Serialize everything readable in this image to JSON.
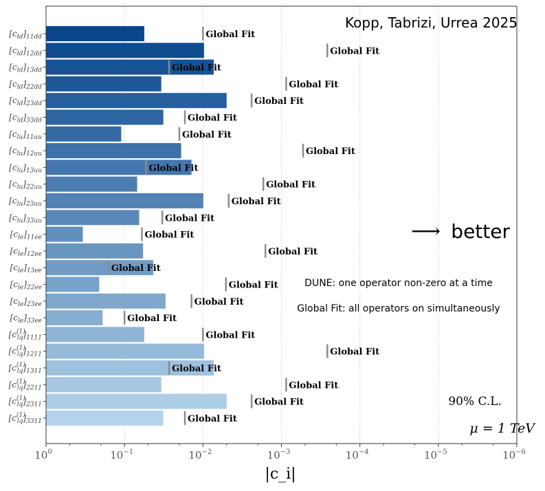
{
  "chart_data": {
    "type": "bar",
    "orientation": "horizontal",
    "x_scale": "log",
    "x_reversed": true,
    "xlim": [
      1,
      1e-06
    ],
    "xlabel": "|c_i|",
    "title": "Kopp, Tabrizi, Urrea 2025",
    "x_ticks": [
      {
        "value": 1,
        "base": "10",
        "exp": "0"
      },
      {
        "value": 0.1,
        "base": "10",
        "exp": "−1"
      },
      {
        "value": 0.01,
        "base": "10",
        "exp": "−2"
      },
      {
        "value": 0.001,
        "base": "10",
        "exp": "−3"
      },
      {
        "value": 0.0001,
        "base": "10",
        "exp": "−4"
      },
      {
        "value": 1e-05,
        "base": "10",
        "exp": "−5"
      },
      {
        "value": 1e-06,
        "base": "10",
        "exp": "−6"
      }
    ],
    "global_fit_label": "Global Fit",
    "annotations": {
      "better": "better",
      "better_arrow": "⟶",
      "dune_note": "DUNE: one operator non-zero at a time",
      "global_note": "Global Fit: all operators on simultaneously",
      "cl": "90% C.L.",
      "mu": "μ = 1 TeV"
    },
    "operators": [
      {
        "sym": "c",
        "sub": "ld",
        "sup": "",
        "idx": "11dd",
        "dune": 0.056,
        "global": 0.01
      },
      {
        "sym": "c",
        "sub": "ld",
        "sup": "",
        "idx": "12dd",
        "dune": 0.0097,
        "global": 0.00026
      },
      {
        "sym": "c",
        "sub": "ld",
        "sup": "",
        "idx": "13dd",
        "dune": 0.0073,
        "global": 0.027
      },
      {
        "sym": "c",
        "sub": "ld",
        "sup": "",
        "idx": "22dd",
        "dune": 0.034,
        "global": 0.00087
      },
      {
        "sym": "c",
        "sub": "ld",
        "sup": "",
        "idx": "23dd",
        "dune": 0.005,
        "global": 0.0024
      },
      {
        "sym": "c",
        "sub": "ld",
        "sup": "",
        "idx": "33dd",
        "dune": 0.032,
        "global": 0.017
      },
      {
        "sym": "c",
        "sub": "lu",
        "sup": "",
        "idx": "11uu",
        "dune": 0.11,
        "global": 0.02
      },
      {
        "sym": "c",
        "sub": "lu",
        "sup": "",
        "idx": "12uu",
        "dune": 0.019,
        "global": 0.00053
      },
      {
        "sym": "c",
        "sub": "lu",
        "sup": "",
        "idx": "13uu",
        "dune": 0.014,
        "global": 0.053
      },
      {
        "sym": "c",
        "sub": "lu",
        "sup": "",
        "idx": "22uu",
        "dune": 0.069,
        "global": 0.0017
      },
      {
        "sym": "c",
        "sub": "lu",
        "sup": "",
        "idx": "23uu",
        "dune": 0.0099,
        "global": 0.0047
      },
      {
        "sym": "c",
        "sub": "lu",
        "sup": "",
        "idx": "33uu",
        "dune": 0.065,
        "global": 0.033
      },
      {
        "sym": "c",
        "sub": "le",
        "sup": "",
        "idx": "11ee",
        "dune": 0.34,
        "global": 0.06
      },
      {
        "sym": "c",
        "sub": "le",
        "sup": "",
        "idx": "12ee",
        "dune": 0.058,
        "global": 0.0016
      },
      {
        "sym": "c",
        "sub": "le",
        "sup": "",
        "idx": "13ee",
        "dune": 0.043,
        "global": 0.16
      },
      {
        "sym": "c",
        "sub": "le",
        "sup": "",
        "idx": "22ee",
        "dune": 0.21,
        "global": 0.0051
      },
      {
        "sym": "c",
        "sub": "le",
        "sup": "",
        "idx": "23ee",
        "dune": 0.03,
        "global": 0.014
      },
      {
        "sym": "c",
        "sub": "le",
        "sup": "",
        "idx": "33ee",
        "dune": 0.19,
        "global": 0.1
      },
      {
        "sym": "c",
        "sub": "lq",
        "sup": "(1)",
        "idx": "1111",
        "dune": 0.056,
        "global": 0.01
      },
      {
        "sym": "c",
        "sub": "lq",
        "sup": "(1)",
        "idx": "1211",
        "dune": 0.0097,
        "global": 0.00026
      },
      {
        "sym": "c",
        "sub": "lq",
        "sup": "(1)",
        "idx": "1311",
        "dune": 0.0073,
        "global": 0.027
      },
      {
        "sym": "c",
        "sub": "lq",
        "sup": "(1)",
        "idx": "2211",
        "dune": 0.034,
        "global": 0.00087
      },
      {
        "sym": "c",
        "sub": "lq",
        "sup": "(1)",
        "idx": "2311",
        "dune": 0.005,
        "global": 0.0024
      },
      {
        "sym": "c",
        "sub": "lq",
        "sup": "(1)",
        "idx": "3311",
        "dune": 0.032,
        "global": 0.017
      }
    ],
    "colors": {
      "bar_start": "#08468c",
      "bar_end": "#b4d3ea",
      "global_marker": "#8c8c8c",
      "grid": "#c8c8c8",
      "axis": "#333333"
    }
  }
}
